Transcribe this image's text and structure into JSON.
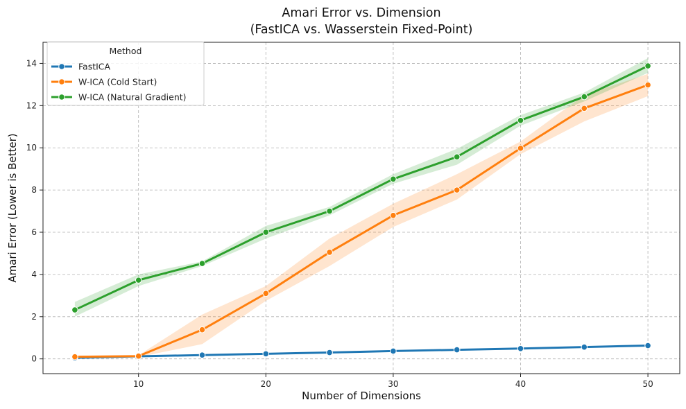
{
  "chart_data": {
    "type": "line",
    "title": "Amari Error vs. Dimension",
    "subtitle": "(FastICA vs. Wasserstein Fixed-Point)",
    "xlabel": "Number of Dimensions",
    "ylabel": "Amari Error (Lower is Better)",
    "xlim": [
      2.5,
      52.5
    ],
    "ylim": [
      -0.7,
      15
    ],
    "xticks": [
      10,
      20,
      30,
      40,
      50
    ],
    "yticks": [
      0,
      2,
      4,
      6,
      8,
      10,
      12,
      14
    ],
    "grid": true,
    "legend_title": "Method",
    "legend_position": "top-left",
    "x": [
      5,
      10,
      15,
      20,
      25,
      30,
      35,
      40,
      45,
      50
    ],
    "series": [
      {
        "name": "FastICA",
        "color": "#1f77b4",
        "values": [
          0.05,
          0.12,
          0.18,
          0.24,
          0.3,
          0.37,
          0.43,
          0.49,
          0.56,
          0.63
        ],
        "lower": [
          0.04,
          0.11,
          0.17,
          0.23,
          0.29,
          0.35,
          0.41,
          0.47,
          0.54,
          0.6
        ],
        "upper": [
          0.06,
          0.13,
          0.19,
          0.25,
          0.31,
          0.39,
          0.45,
          0.51,
          0.58,
          0.66
        ]
      },
      {
        "name": "W-ICA (Cold Start)",
        "color": "#ff7f0e",
        "values": [
          0.1,
          0.13,
          1.38,
          3.1,
          5.05,
          6.8,
          8.0,
          9.98,
          11.87,
          12.98
        ],
        "lower": [
          0.07,
          0.09,
          0.7,
          2.75,
          4.4,
          6.25,
          7.55,
          9.7,
          11.25,
          12.45
        ],
        "upper": [
          0.13,
          0.17,
          2.1,
          3.45,
          5.7,
          7.35,
          8.75,
          10.3,
          12.5,
          13.5
        ]
      },
      {
        "name": "W-ICA (Natural Gradient)",
        "color": "#2ca02c",
        "values": [
          2.32,
          3.73,
          4.52,
          6.0,
          7.0,
          8.52,
          9.57,
          11.3,
          12.42,
          13.88
        ],
        "lower": [
          2.0,
          3.45,
          4.4,
          5.7,
          6.8,
          8.3,
          9.2,
          11.05,
          12.2,
          13.55
        ],
        "upper": [
          2.7,
          4.0,
          4.62,
          6.3,
          7.2,
          8.75,
          9.95,
          11.55,
          12.62,
          14.25
        ]
      }
    ]
  }
}
